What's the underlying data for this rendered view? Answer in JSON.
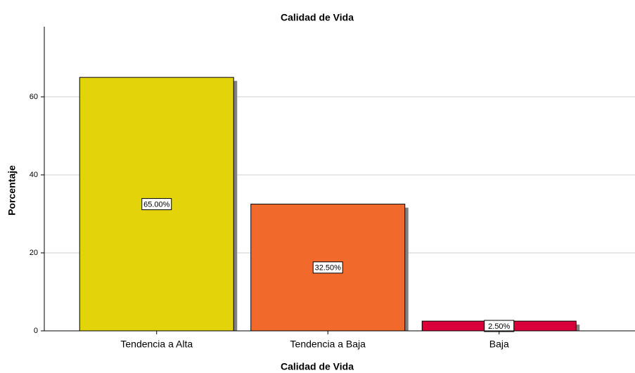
{
  "chart_data": {
    "type": "bar",
    "title": "Calidad de Vida",
    "x_label": "Calidad de Vida",
    "y_label": "Porcentaje",
    "categories": [
      "Tendencia a Alta",
      "Tendencia a Baja",
      "Baja"
    ],
    "values": [
      65.0,
      32.5,
      2.5
    ],
    "value_labels": [
      "65.00%",
      "32.50%",
      "2.50%"
    ],
    "colors": [
      "#e2d30a",
      "#f26a2b",
      "#d9003a"
    ],
    "ylim": [
      0,
      78
    ],
    "yticks": [
      0,
      20,
      40,
      60
    ],
    "grid": true
  }
}
